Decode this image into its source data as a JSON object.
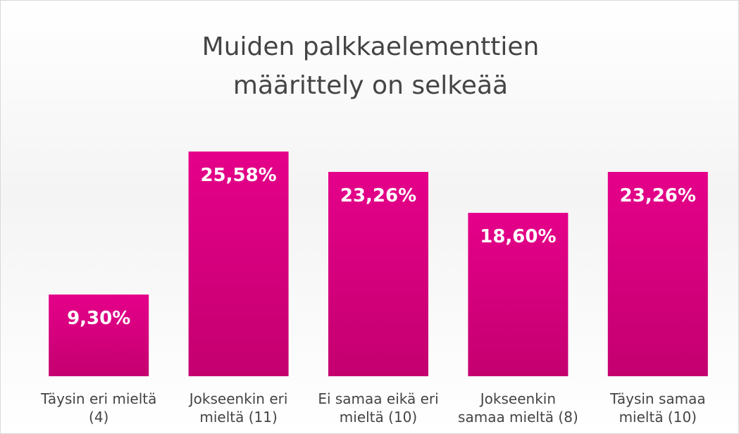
{
  "chart_data": {
    "type": "bar",
    "title": "Muiden palkkaelementtien määrittely on selkeää",
    "categories": [
      "Täysin eri mieltä (4)",
      "Jokseenkin eri mieltä (11)",
      "Ei samaa eikä eri mieltä (10)",
      "Jokseenkin samaa mieltä (8)",
      "Täysin samaa mieltä (10)"
    ],
    "values": [
      9.3,
      25.58,
      23.26,
      18.6,
      23.26
    ],
    "value_labels": [
      "9,30%",
      "25,58%",
      "23,26%",
      "18,60%",
      "23,26%"
    ],
    "color": "#e5008a",
    "ylim": [
      0,
      30
    ]
  }
}
